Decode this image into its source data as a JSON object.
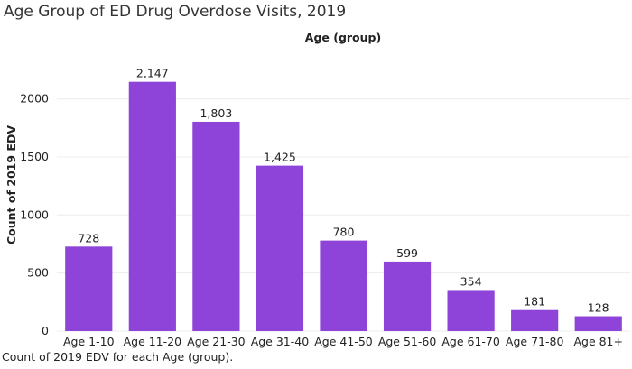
{
  "chart_data": {
    "type": "bar",
    "title": "Age Group of ED Drug Overdose Visits, 2019",
    "column_header": "Age (group)",
    "ylabel": "Count of 2019 EDV",
    "xlabel": "",
    "categories": [
      "Age 1-10",
      "Age 11-20",
      "Age 21-30",
      "Age 31-40",
      "Age 41-50",
      "Age 51-60",
      "Age 61-70",
      "Age 71-80",
      "Age 81+"
    ],
    "values": [
      728,
      2147,
      1803,
      1425,
      780,
      599,
      354,
      181,
      128
    ],
    "value_labels": [
      "728",
      "2,147",
      "1,803",
      "1,425",
      "780",
      "599",
      "354",
      "181",
      "128"
    ],
    "ylim": [
      0,
      2300
    ],
    "yticks": [
      0,
      500,
      1000,
      1500,
      2000
    ],
    "bar_color": "#8e44d9",
    "grid": "horizontal, faint",
    "legend": "none"
  },
  "caption": "Count of 2019 EDV for each Age (group)."
}
